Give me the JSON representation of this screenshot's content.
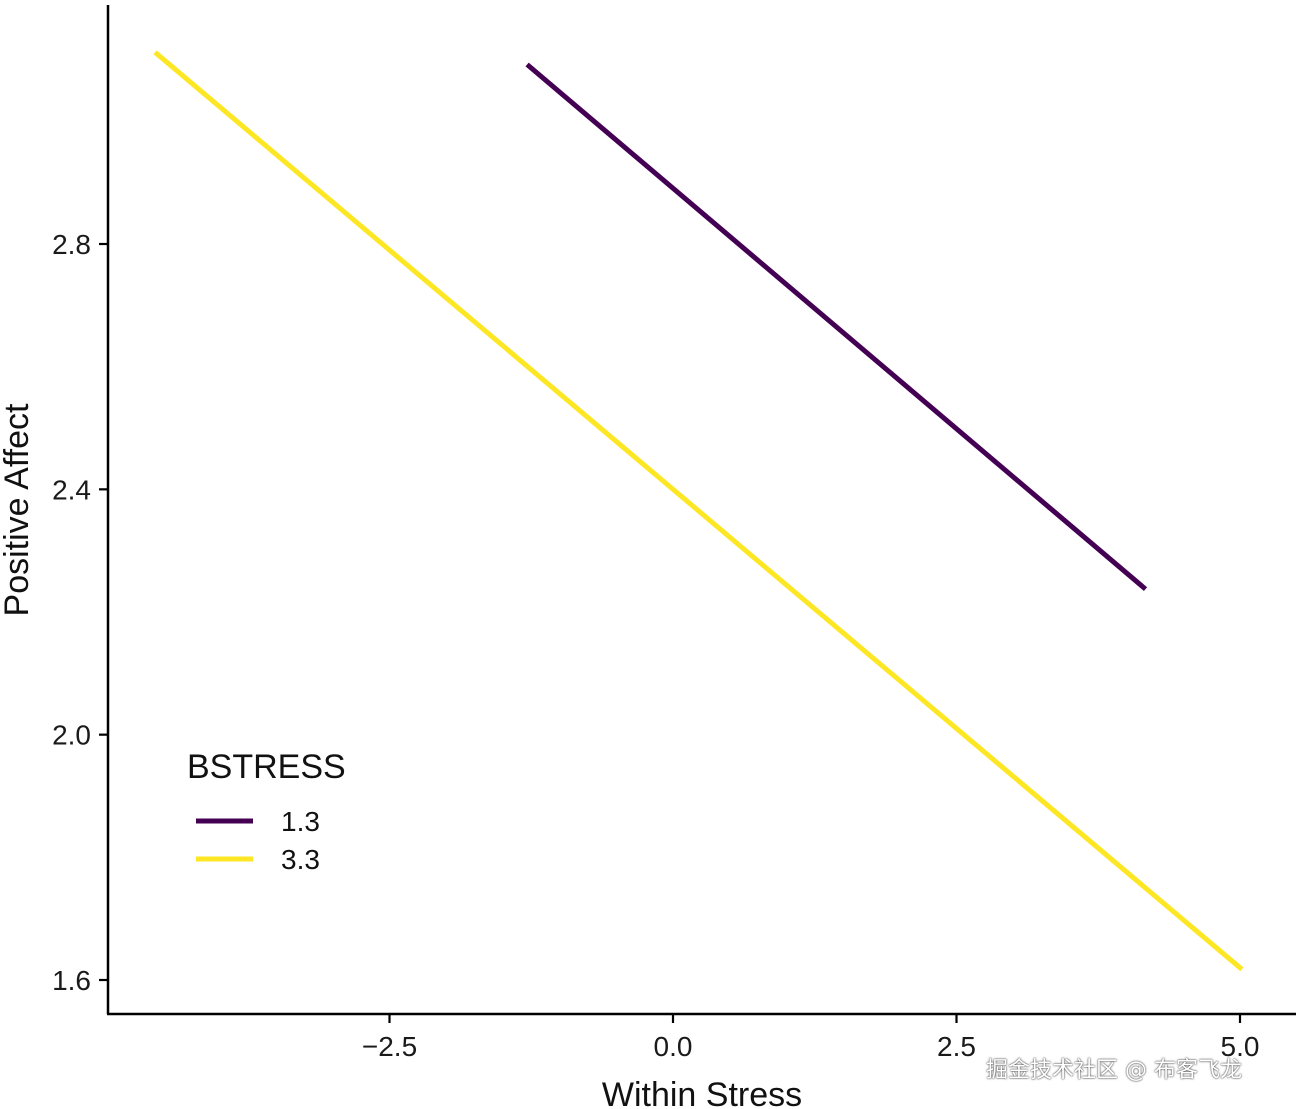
{
  "chart_data": {
    "type": "line",
    "title": "",
    "xlabel": "Within Stress",
    "ylabel": "Positive Affect",
    "xlim": [
      -5.05,
      5.4
    ],
    "ylim": [
      1.545,
      3.19
    ],
    "x_ticks": [
      -2.5,
      0.0,
      2.5,
      5.0
    ],
    "x_tick_labels": [
      "−2.5",
      "0.0",
      "2.5",
      "5.0"
    ],
    "y_ticks": [
      1.6,
      2.0,
      2.4,
      2.8
    ],
    "y_tick_labels": [
      "1.6",
      "2.0",
      "2.4",
      "2.8"
    ],
    "legend_title": "BSTRESS",
    "legend_position": "bottom-left",
    "series": [
      {
        "name": "1.3",
        "color": "#440154",
        "x": [
          -1.27,
          4.15
        ],
        "y": [
          3.09,
          2.24
        ]
      },
      {
        "name": "3.3",
        "color": "#FDE725",
        "x": [
          -4.55,
          5.0
        ],
        "y": [
          3.11,
          1.62
        ]
      }
    ]
  },
  "watermark": "掘金技术社区 @ 布客飞龙"
}
